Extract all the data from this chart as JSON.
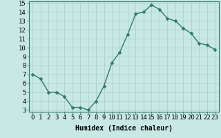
{
  "x": [
    0,
    1,
    2,
    3,
    4,
    5,
    6,
    7,
    8,
    9,
    10,
    11,
    12,
    13,
    14,
    15,
    16,
    17,
    18,
    19,
    20,
    21,
    22,
    23
  ],
  "y": [
    7.0,
    6.5,
    5.0,
    5.0,
    4.5,
    3.3,
    3.3,
    3.0,
    4.0,
    5.7,
    8.3,
    9.5,
    11.5,
    13.8,
    14.0,
    14.8,
    14.3,
    13.3,
    13.0,
    12.2,
    11.6,
    10.5,
    10.3,
    9.8
  ],
  "line_color": "#2d7a6e",
  "marker": "D",
  "marker_size": 2.5,
  "bg_color": "#c8e8e4",
  "grid_color": "#a8ccc8",
  "xlabel": "Humidex (Indice chaleur)",
  "xlim": [
    -0.5,
    23.5
  ],
  "ylim": [
    2.8,
    15.2
  ],
  "yticks": [
    3,
    4,
    5,
    6,
    7,
    8,
    9,
    10,
    11,
    12,
    13,
    14,
    15
  ],
  "xticks": [
    0,
    1,
    2,
    3,
    4,
    5,
    6,
    7,
    8,
    9,
    10,
    11,
    12,
    13,
    14,
    15,
    16,
    17,
    18,
    19,
    20,
    21,
    22,
    23
  ],
  "xlabel_fontsize": 7,
  "tick_fontsize": 6.5,
  "line_width": 1.0
}
